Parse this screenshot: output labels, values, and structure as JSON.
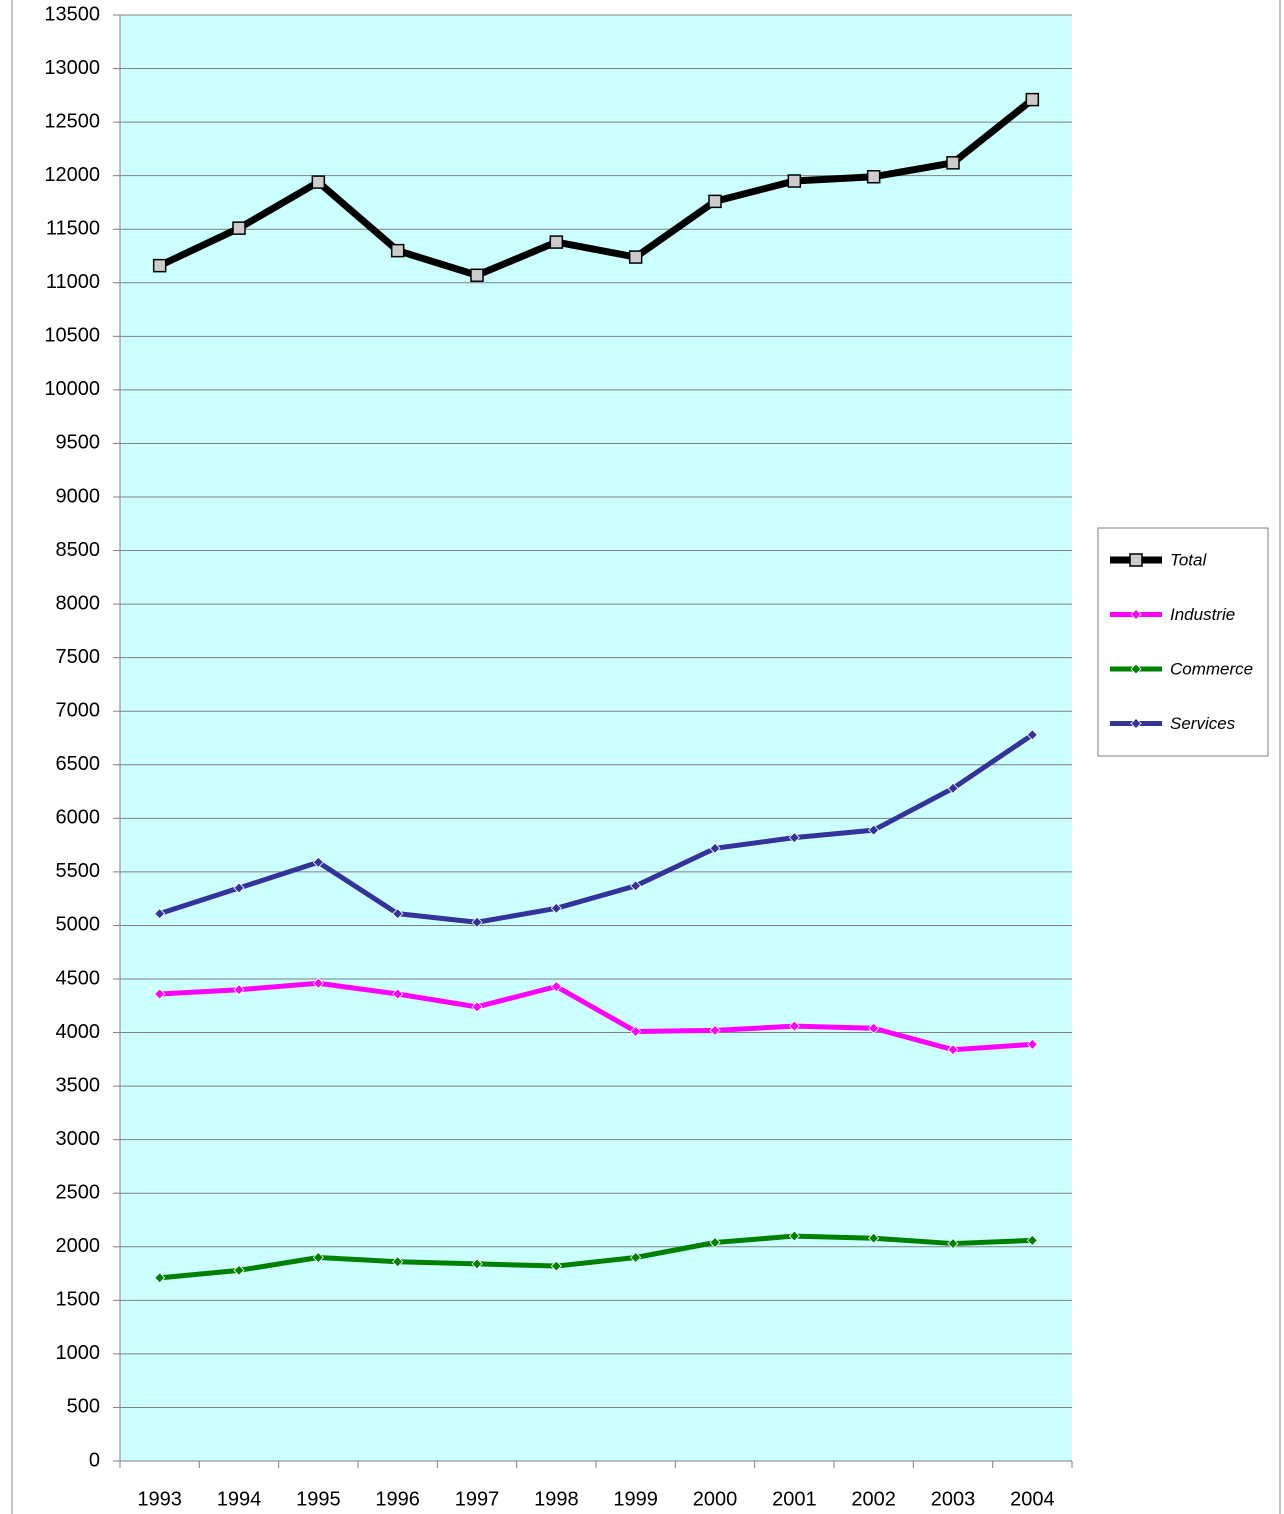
{
  "chart_data": {
    "type": "line",
    "categories": [
      "1993",
      "1994",
      "1995",
      "1996",
      "1997",
      "1998",
      "1999",
      "2000",
      "2001",
      "2002",
      "2003",
      "2004"
    ],
    "series": [
      {
        "name": "Total",
        "color": "#000000",
        "marker": "square",
        "values": [
          11160,
          11510,
          11940,
          11300,
          11070,
          11380,
          11240,
          11760,
          11950,
          11990,
          12120,
          12710
        ]
      },
      {
        "name": "Industrie",
        "color": "#ff00ff",
        "marker": "diamond",
        "values": [
          4360,
          4400,
          4460,
          4360,
          4240,
          4430,
          4010,
          4020,
          4060,
          4040,
          3840,
          3890
        ]
      },
      {
        "name": "Commerce",
        "color": "#008000",
        "marker": "diamond",
        "values": [
          1710,
          1780,
          1900,
          1860,
          1840,
          1820,
          1900,
          2040,
          2100,
          2080,
          2030,
          2060
        ]
      },
      {
        "name": "Services",
        "color": "#333399",
        "marker": "diamond",
        "values": [
          5110,
          5350,
          5590,
          5110,
          5030,
          5160,
          5370,
          5720,
          5820,
          5890,
          6280,
          6780
        ]
      }
    ],
    "ylim": [
      0,
      13500
    ],
    "yticks": [
      0,
      500,
      1000,
      1500,
      2000,
      2500,
      3000,
      3500,
      4000,
      4500,
      5000,
      5500,
      6000,
      6500,
      7000,
      7500,
      8000,
      8500,
      9000,
      9500,
      10000,
      10500,
      11000,
      11500,
      12000,
      12500,
      13000,
      13500
    ],
    "grid": true,
    "legend": "right",
    "plot_background": "#ccffff"
  }
}
